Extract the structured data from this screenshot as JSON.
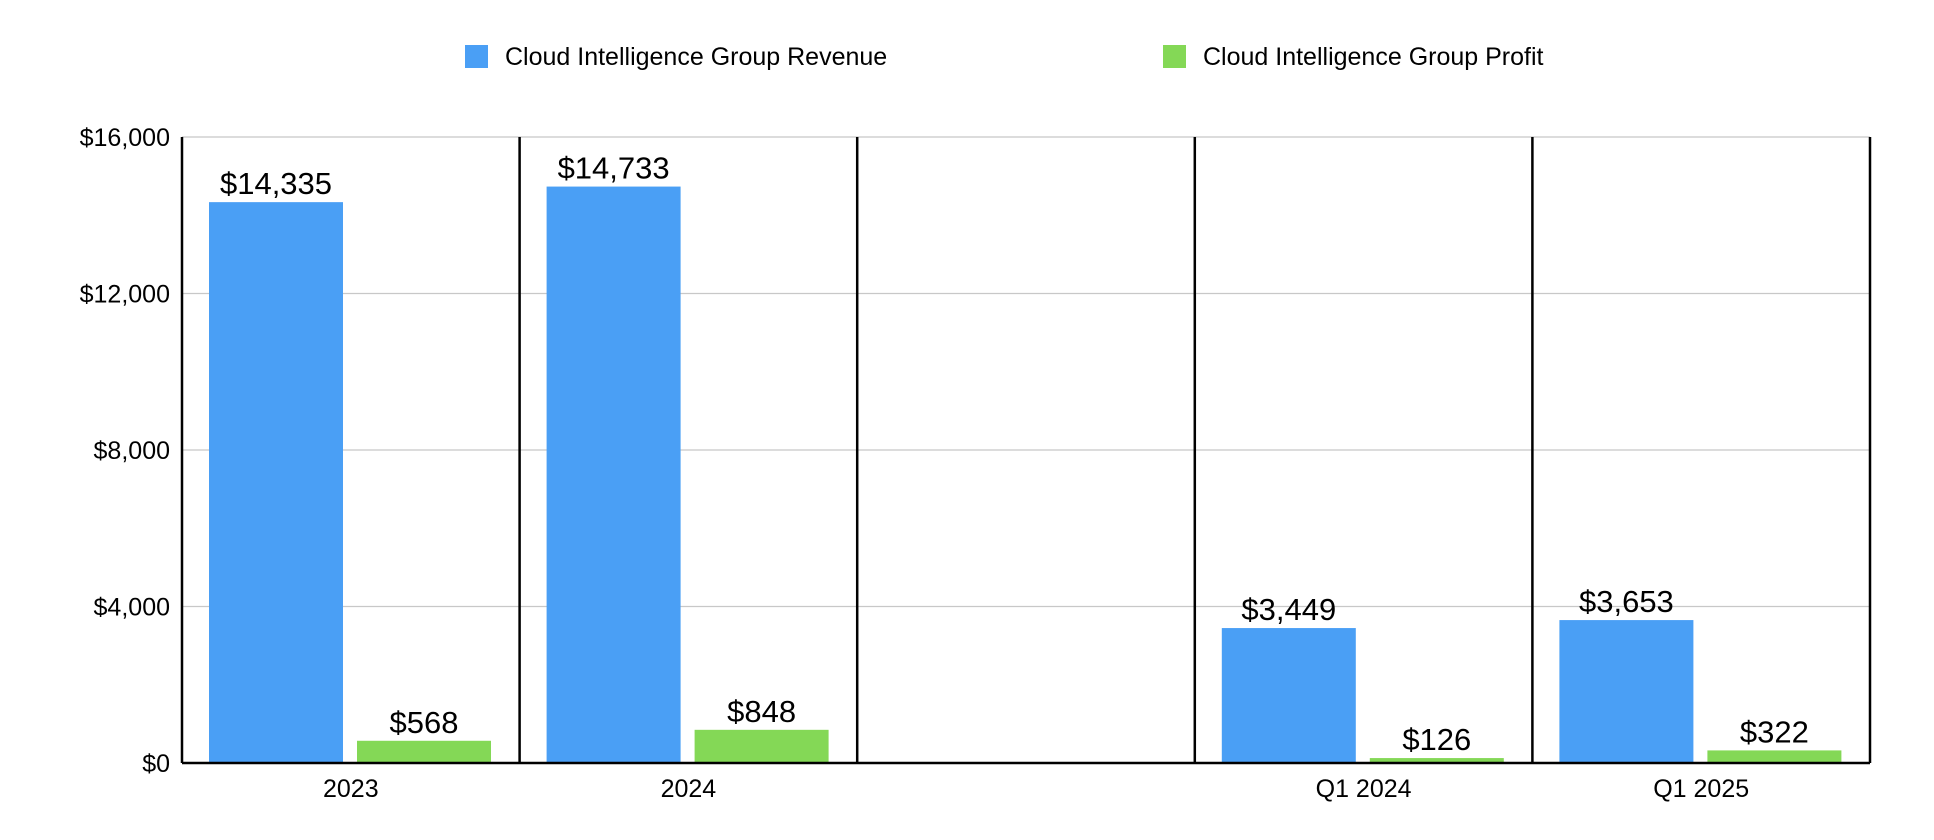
{
  "chart_data": {
    "type": "bar",
    "title": "",
    "xlabel": "",
    "ylabel": "",
    "ylim": [
      0,
      16000
    ],
    "yticks": [
      0,
      4000,
      8000,
      12000,
      16000
    ],
    "ytick_labels": [
      "$0",
      "$4,000",
      "$8,000",
      "$12,000",
      "$16,000"
    ],
    "grid": true,
    "legend_position": "top",
    "categories": [
      "2023",
      "2024",
      "",
      "Q1 2024",
      "Q1 2025"
    ],
    "series": [
      {
        "name": "Cloud Intelligence Group Revenue",
        "color": "#4a9ff5",
        "values": [
          14335,
          14733,
          null,
          3449,
          3653
        ],
        "labels": [
          "$14,335",
          "$14,733",
          "",
          "$3,449",
          "$3,653"
        ]
      },
      {
        "name": "Cloud Intelligence Group Profit",
        "color": "#84d856",
        "values": [
          568,
          848,
          null,
          126,
          322
        ],
        "labels": [
          "$568",
          "$848",
          "",
          "$126",
          "$322"
        ]
      }
    ]
  }
}
